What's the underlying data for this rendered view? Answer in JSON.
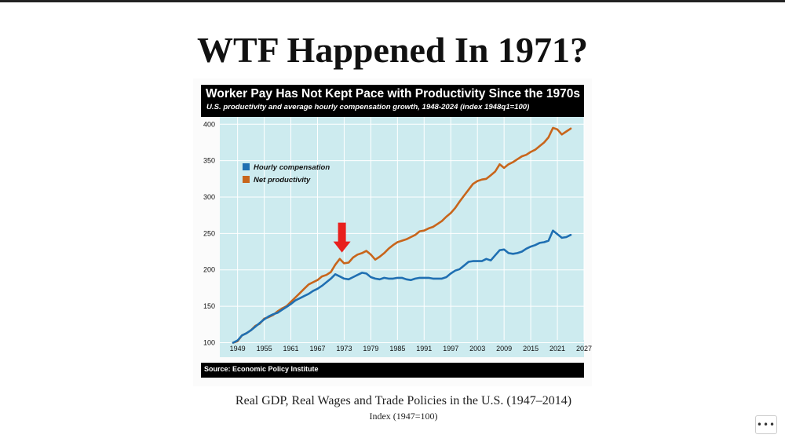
{
  "page": {
    "title": "WTF Happened In 1971?",
    "caption": "Real GDP, Real Wages and Trade Policies in the U.S. (1947–2014)",
    "caption_sub": "Index (1947=100)",
    "more_icon": "more-horizontal-icon"
  },
  "chart_data": {
    "type": "line",
    "title": "Worker Pay Has Not Kept Pace with Productivity Since the 1970s",
    "subtitle": "U.S. productivity and average hourly compensation growth, 1948-2024 (index 1948q1=100)",
    "source": "Source: Economic Policy Institute",
    "xlim": [
      1945,
      2027
    ],
    "ylim": [
      80,
      410
    ],
    "x_ticks": [
      1949,
      1955,
      1961,
      1967,
      1973,
      1979,
      1985,
      1991,
      1997,
      2003,
      2009,
      2015,
      2021,
      2027
    ],
    "y_ticks": [
      100,
      150,
      200,
      250,
      300,
      350,
      400
    ],
    "grid": true,
    "legend_position": "upper-left",
    "plot_background": "#cdebef",
    "annotation": {
      "type": "arrow",
      "color": "#e8201d",
      "x": 1972.5,
      "points_to_y": 213
    },
    "series": [
      {
        "name": "Hourly compensation",
        "color": "#1f6fb2",
        "x": [
          1948,
          1949,
          1950,
          1951,
          1952,
          1953,
          1954,
          1955,
          1956,
          1957,
          1958,
          1959,
          1960,
          1961,
          1962,
          1963,
          1964,
          1965,
          1966,
          1967,
          1968,
          1969,
          1970,
          1971,
          1972,
          1973,
          1974,
          1975,
          1976,
          1977,
          1978,
          1979,
          1980,
          1981,
          1982,
          1983,
          1984,
          1985,
          1986,
          1987,
          1988,
          1989,
          1990,
          1991,
          1992,
          1993,
          1994,
          1995,
          1996,
          1997,
          1998,
          1999,
          2000,
          2001,
          2002,
          2003,
          2004,
          2005,
          2006,
          2007,
          2008,
          2009,
          2010,
          2011,
          2012,
          2013,
          2014,
          2015,
          2016,
          2017,
          2018,
          2019,
          2020,
          2021,
          2022,
          2023,
          2024
        ],
        "values": [
          100,
          103,
          110,
          113,
          117,
          122,
          127,
          132,
          136,
          139,
          141,
          145,
          149,
          153,
          158,
          161,
          164,
          167,
          171,
          174,
          178,
          183,
          188,
          194,
          191,
          188,
          187,
          190,
          193,
          196,
          195,
          190,
          188,
          187,
          189,
          188,
          188,
          189,
          189,
          187,
          186,
          188,
          189,
          189,
          189,
          188,
          188,
          188,
          190,
          195,
          199,
          201,
          206,
          211,
          212,
          212,
          212,
          215,
          213,
          220,
          227,
          228,
          223,
          222,
          223,
          225,
          229,
          232,
          234,
          237,
          238,
          240,
          254,
          249,
          244,
          245,
          248
        ]
      },
      {
        "name": "Net productivity",
        "color": "#c8651b",
        "x": [
          1948,
          1949,
          1950,
          1951,
          1952,
          1953,
          1954,
          1955,
          1956,
          1957,
          1958,
          1959,
          1960,
          1961,
          1962,
          1963,
          1964,
          1965,
          1966,
          1967,
          1968,
          1969,
          1970,
          1971,
          1972,
          1973,
          1974,
          1975,
          1976,
          1977,
          1978,
          1979,
          1980,
          1981,
          1982,
          1983,
          1984,
          1985,
          1986,
          1987,
          1988,
          1989,
          1990,
          1991,
          1992,
          1993,
          1994,
          1995,
          1996,
          1997,
          1998,
          1999,
          2000,
          2001,
          2002,
          2003,
          2004,
          2005,
          2006,
          2007,
          2008,
          2009,
          2010,
          2011,
          2012,
          2013,
          2014,
          2015,
          2016,
          2017,
          2018,
          2019,
          2020,
          2021,
          2022,
          2023,
          2024
        ],
        "values": [
          100,
          102,
          110,
          113,
          117,
          123,
          126,
          133,
          135,
          138,
          143,
          147,
          150,
          156,
          162,
          168,
          174,
          180,
          183,
          186,
          191,
          193,
          197,
          207,
          215,
          209,
          210,
          217,
          221,
          223,
          226,
          221,
          214,
          218,
          223,
          229,
          234,
          238,
          240,
          242,
          245,
          248,
          253,
          254,
          257,
          259,
          263,
          267,
          273,
          278,
          285,
          294,
          302,
          310,
          318,
          322,
          324,
          325,
          330,
          335,
          345,
          340,
          345,
          348,
          352,
          356,
          358,
          362,
          365,
          370,
          375,
          382,
          395,
          393,
          386,
          390,
          394
        ]
      }
    ]
  }
}
